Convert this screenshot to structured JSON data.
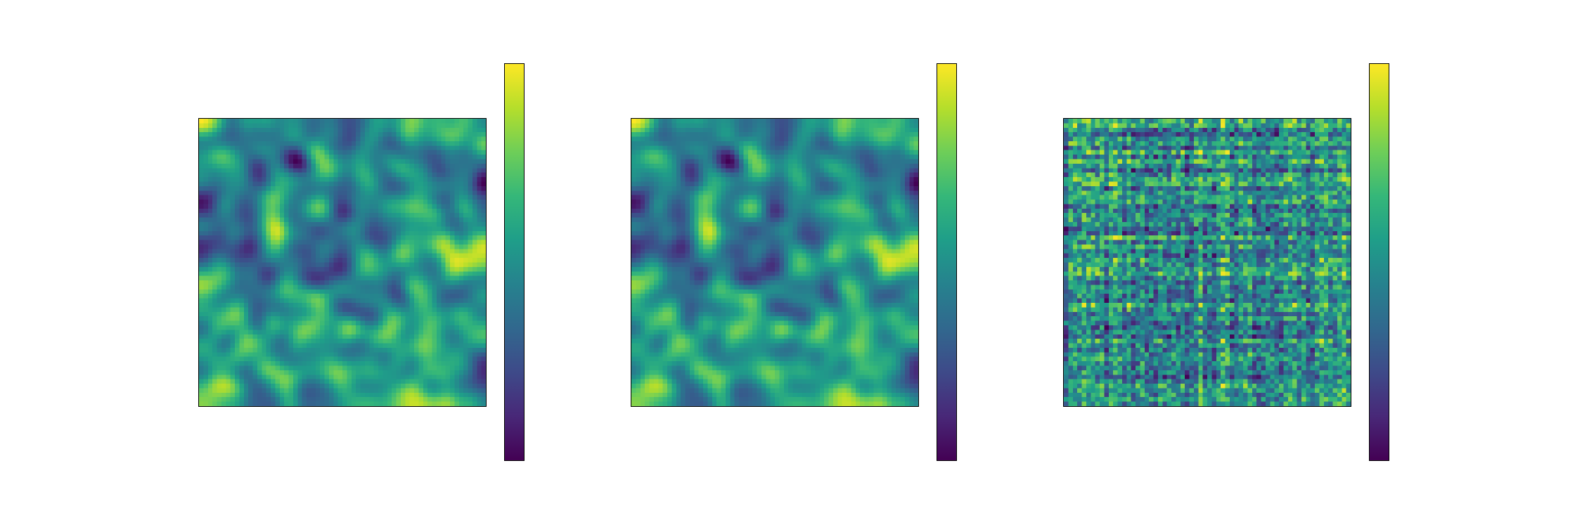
{
  "figure": {
    "colormap": "viridis",
    "colormap_stops": [
      "#440154",
      "#482878",
      "#3e4a89",
      "#31688e",
      "#26828e",
      "#1f9e89",
      "#35b779",
      "#6ece58",
      "#b5de2b",
      "#fde725"
    ]
  },
  "chart_data": [
    {
      "type": "heatmap",
      "title": "",
      "xlabel": "",
      "ylabel": "",
      "grid_size": [
        64,
        64
      ],
      "axes_ticks": false,
      "colorbar": true,
      "colorbar_ticks": false,
      "pattern": "smooth-correlated-field",
      "seed": 7,
      "value_range": [
        0,
        1
      ]
    },
    {
      "type": "heatmap",
      "title": "",
      "xlabel": "",
      "ylabel": "",
      "grid_size": [
        64,
        64
      ],
      "axes_ticks": false,
      "colorbar": true,
      "colorbar_ticks": false,
      "pattern": "smooth-correlated-field",
      "seed": 7,
      "value_range": [
        0,
        1
      ]
    },
    {
      "type": "heatmap",
      "title": "",
      "xlabel": "",
      "ylabel": "",
      "grid_size": [
        64,
        64
      ],
      "axes_ticks": false,
      "colorbar": true,
      "colorbar_ticks": false,
      "pattern": "blocky-noise-field",
      "seed": 23,
      "value_range": [
        0,
        1
      ]
    }
  ]
}
